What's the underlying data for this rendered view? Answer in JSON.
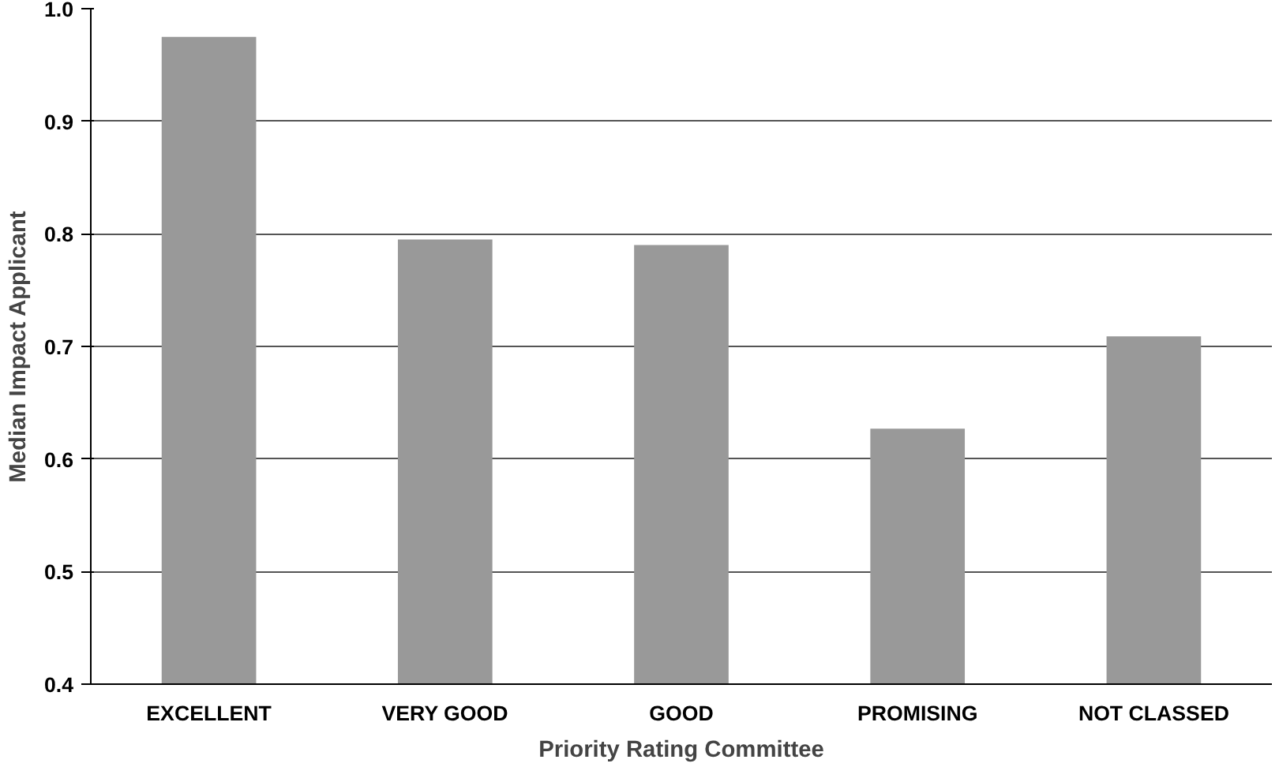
{
  "chart_data": {
    "type": "bar",
    "xlabel": "Priority Rating Committee",
    "ylabel": "Median Impact Applicant",
    "categories": [
      "EXCELLENT",
      "VERY GOOD",
      "GOOD",
      "PROMISING",
      "NOT CLASSED"
    ],
    "values": [
      0.975,
      0.795,
      0.79,
      0.627,
      0.709
    ],
    "color": "#999999",
    "ylim": [
      0.4,
      1.0
    ],
    "yticks": [
      {
        "value": 0.4,
        "label": "0.4"
      },
      {
        "value": 0.5,
        "label": "0.5"
      },
      {
        "value": 0.6,
        "label": "0.6"
      },
      {
        "value": 0.7,
        "label": "0.7"
      },
      {
        "value": 0.8,
        "label": "0.8"
      },
      {
        "value": 0.9,
        "label": "0.9"
      },
      {
        "value": 1.0,
        "label": "1.0"
      }
    ],
    "grid": "y"
  }
}
